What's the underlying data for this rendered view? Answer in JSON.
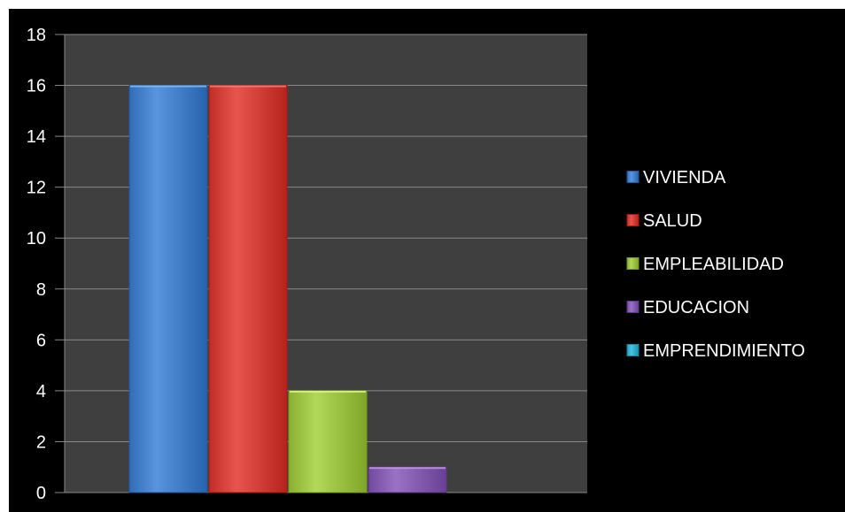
{
  "chart_data": {
    "type": "bar",
    "title": "",
    "xlabel": "",
    "ylabel": "",
    "ylim": [
      0,
      18
    ],
    "ytick_step": 2,
    "yticks": [
      "0",
      "2",
      "4",
      "6",
      "8",
      "10",
      "12",
      "14",
      "16",
      "18"
    ],
    "grid": true,
    "legend_position": "right",
    "series": [
      {
        "name": "VIVIENDA",
        "value": 16,
        "color": "#4a86cf"
      },
      {
        "name": "SALUD",
        "value": 16,
        "color": "#d9453f"
      },
      {
        "name": "EMPLEABILIDAD",
        "value": 4,
        "color": "#a3c94a"
      },
      {
        "name": "EDUCACION",
        "value": 1,
        "color": "#8a63b7"
      },
      {
        "name": "EMPRENDIMIENTO",
        "value": 0,
        "color": "#3bb7d3"
      }
    ],
    "colors": {
      "background": "#000000",
      "plot_area": "#3f3f3f",
      "gridline": "#8a8a8a",
      "text": "#ffffff"
    }
  }
}
